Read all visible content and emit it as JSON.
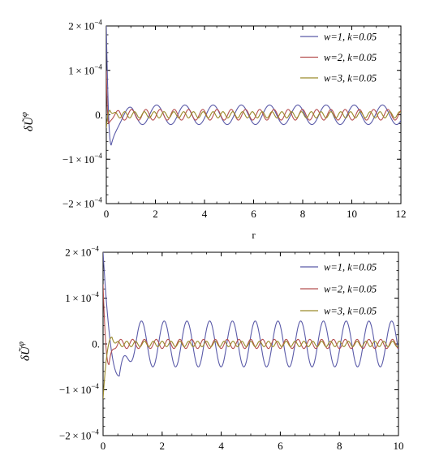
{
  "chart_data": [
    {
      "type": "line",
      "xlabel": "r",
      "ylabel": "δŨ^φ",
      "xlim": [
        0,
        12
      ],
      "ylim": [
        -0.0002,
        0.0002
      ],
      "x_ticks": [
        0,
        2,
        4,
        6,
        8,
        10,
        12
      ],
      "y_ticks": [
        {
          "value": 0.0002,
          "mantissa": "2.",
          "exponent": "−4"
        },
        {
          "value": 0.0001,
          "mantissa": "1.",
          "exponent": "−4"
        },
        {
          "value": 0,
          "mantissa": "0.",
          "exponent": ""
        },
        {
          "value": -0.0001,
          "mantissa": "−1.",
          "exponent": "−4"
        },
        {
          "value": -0.0002,
          "mantissa": "−2.",
          "exponent": "−4"
        }
      ],
      "legend_position": "top-right",
      "grid": false,
      "series": [
        {
          "name": "w=1, k=0.05",
          "color": "#5a5aa8",
          "w": 1,
          "start": 0.0002,
          "min_point": [
            0.2,
            -6.8e-05
          ],
          "amplitude": 2.2e-05,
          "period": 1.15,
          "phase_ref": 0.9
        },
        {
          "name": "w=2, k=0.05",
          "color": "#b55050",
          "w": 2,
          "start": 0.0001,
          "min_point": [
            0.1,
            -2e-05
          ],
          "amplitude": 1.2e-05,
          "period": 0.58,
          "phase_ref": 0.45
        },
        {
          "name": "w=3, k=0.05",
          "color": "#9a8a2a",
          "w": 3,
          "start": -3e-05,
          "min_point": [
            0.15,
            1e-05
          ],
          "amplitude": 7e-06,
          "period": 0.4,
          "phase_ref": 0.35
        }
      ]
    },
    {
      "type": "line",
      "xlabel": "",
      "ylabel": "δŨ^φ",
      "xlim": [
        0,
        10
      ],
      "ylim": [
        -0.0002,
        0.0002
      ],
      "x_ticks": [
        0,
        2,
        4,
        6,
        8,
        10
      ],
      "y_ticks": [
        {
          "value": 0.0002,
          "mantissa": "2.",
          "exponent": "−4"
        },
        {
          "value": 0.0001,
          "mantissa": "1.",
          "exponent": "−4"
        },
        {
          "value": 0,
          "mantissa": "0.",
          "exponent": ""
        },
        {
          "value": -0.0001,
          "mantissa": "−1.",
          "exponent": "−4"
        },
        {
          "value": -0.0002,
          "mantissa": "−2.",
          "exponent": "−4"
        }
      ],
      "legend_position": "top-right",
      "grid": false,
      "series": [
        {
          "name": "w=1, k=0.05",
          "color": "#5a5aa8",
          "w": 1,
          "start": 0.0002,
          "min_point": [
            0.55,
            -7e-05
          ],
          "amplitude": 5e-05,
          "period": 0.77,
          "phase_ref": 1.3
        },
        {
          "name": "w=2, k=0.05",
          "color": "#b55050",
          "w": 2,
          "start": 0.00013,
          "min_point": [
            0.2,
            -4.5e-05
          ],
          "amplitude": 1e-05,
          "period": 0.4,
          "phase_ref": 0.6
        },
        {
          "name": "w=3, k=0.05",
          "color": "#9a8a2a",
          "w": 3,
          "start": -0.00012,
          "min_point": [
            0.3,
            1.5e-05
          ],
          "amplitude": 6e-06,
          "period": 0.3,
          "phase_ref": 0.5
        }
      ]
    }
  ]
}
